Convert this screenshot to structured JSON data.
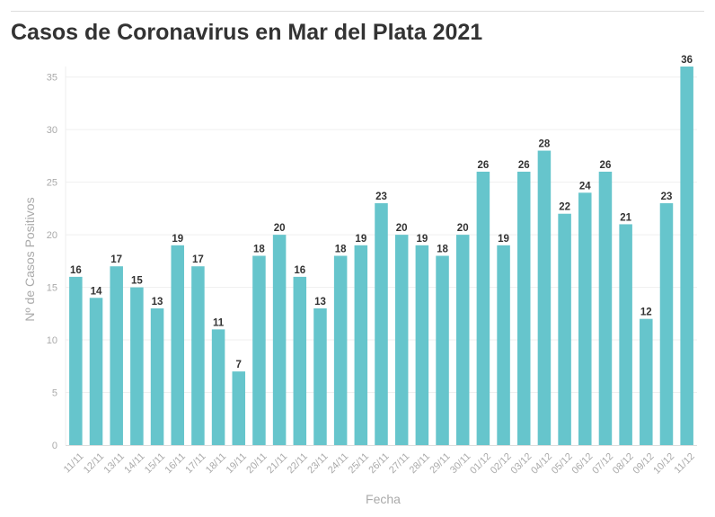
{
  "chart_data": {
    "type": "bar",
    "title": "Casos de Coronavirus en Mar del Plata 2021",
    "xlabel": "Fecha",
    "ylabel": "Nº de Casos Positivos",
    "ylim": [
      0,
      36
    ],
    "yticks": [
      0,
      5,
      10,
      15,
      20,
      25,
      30,
      35
    ],
    "grid": true,
    "bar_color": "#66c5cc",
    "categories": [
      "11/11",
      "12/11",
      "13/11",
      "14/11",
      "15/11",
      "16/11",
      "17/11",
      "18/11",
      "19/11",
      "20/11",
      "21/11",
      "22/11",
      "23/11",
      "24/11",
      "25/11",
      "26/11",
      "27/11",
      "28/11",
      "29/11",
      "30/11",
      "01/12",
      "02/12",
      "03/12",
      "04/12",
      "05/12",
      "06/12",
      "07/12",
      "08/12",
      "09/12",
      "10/12",
      "11/12"
    ],
    "values": [
      16,
      14,
      17,
      15,
      13,
      19,
      17,
      11,
      7,
      18,
      20,
      16,
      13,
      18,
      19,
      23,
      20,
      19,
      18,
      20,
      26,
      19,
      26,
      28,
      22,
      24,
      26,
      21,
      12,
      23,
      36
    ]
  }
}
